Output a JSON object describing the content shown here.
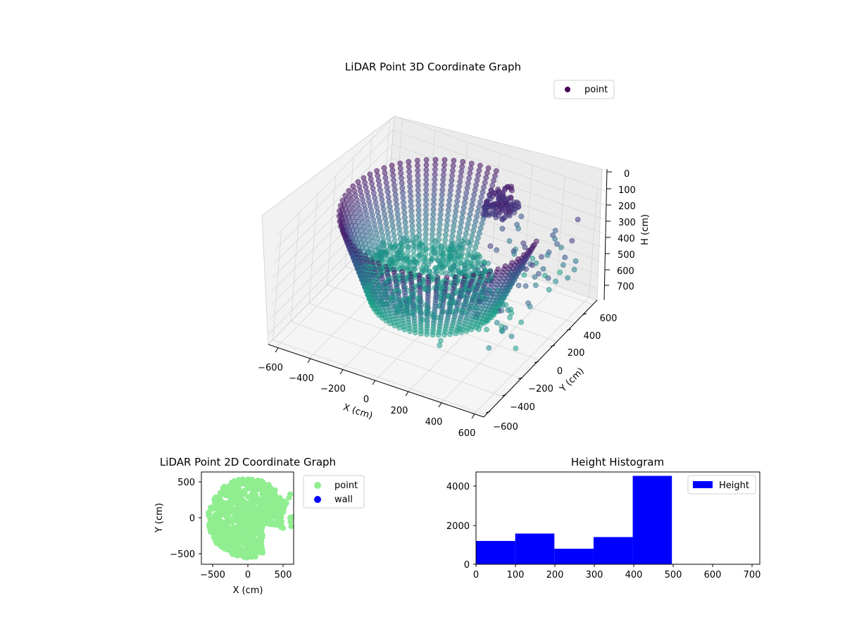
{
  "chart_data": [
    {
      "type": "scatter",
      "subtype": "3d",
      "title": "LiDAR Point 3D Coordinate Graph",
      "xlabel": "X (cm)",
      "ylabel": "Y (cm)",
      "zlabel": "H (cm)",
      "xlim": [
        -650,
        650
      ],
      "ylim": [
        -650,
        650
      ],
      "zlim": [
        780,
        0
      ],
      "x_ticks": [
        "−600",
        "−400",
        "−200",
        "0",
        "200",
        "400",
        "600"
      ],
      "y_ticks": [
        "−600",
        "−400",
        "−200",
        "0",
        "200",
        "400",
        "600"
      ],
      "z_ticks": [
        "0",
        "100",
        "200",
        "300",
        "400",
        "500",
        "600",
        "700"
      ],
      "legend": [
        "point"
      ],
      "legend_position": "top-right",
      "colormap": "viridis",
      "grid": true
    },
    {
      "type": "scatter",
      "title": "LiDAR Point 2D Coordinate Graph",
      "xlabel": "X (cm)",
      "ylabel": "Y (cm)",
      "xlim": [
        -650,
        650
      ],
      "ylim": [
        -650,
        650
      ],
      "x_ticks": [
        "−500",
        "0",
        "500"
      ],
      "y_ticks": [
        "500",
        "0",
        "−500"
      ],
      "series": [
        {
          "name": "point",
          "color": "#90ee90"
        },
        {
          "name": "wall",
          "color": "#0000ff"
        }
      ],
      "legend_position": "outside-right"
    },
    {
      "type": "bar",
      "subtype": "histogram",
      "title": "Height Histogram",
      "bin_edges": [
        0,
        107,
        214,
        321,
        428,
        535,
        642,
        749
      ],
      "values": [
        1200,
        1580,
        800,
        1400,
        4550,
        0,
        0
      ],
      "xlim": [
        0,
        775
      ],
      "ylim": [
        0,
        4750
      ],
      "x_ticks": [
        "0",
        "100",
        "200",
        "300",
        "400",
        "500",
        "600",
        "700"
      ],
      "y_ticks": [
        "0",
        "2000",
        "4000"
      ],
      "series": [
        {
          "name": "Height",
          "color": "#0000ff"
        }
      ],
      "legend_position": "top-right"
    }
  ]
}
